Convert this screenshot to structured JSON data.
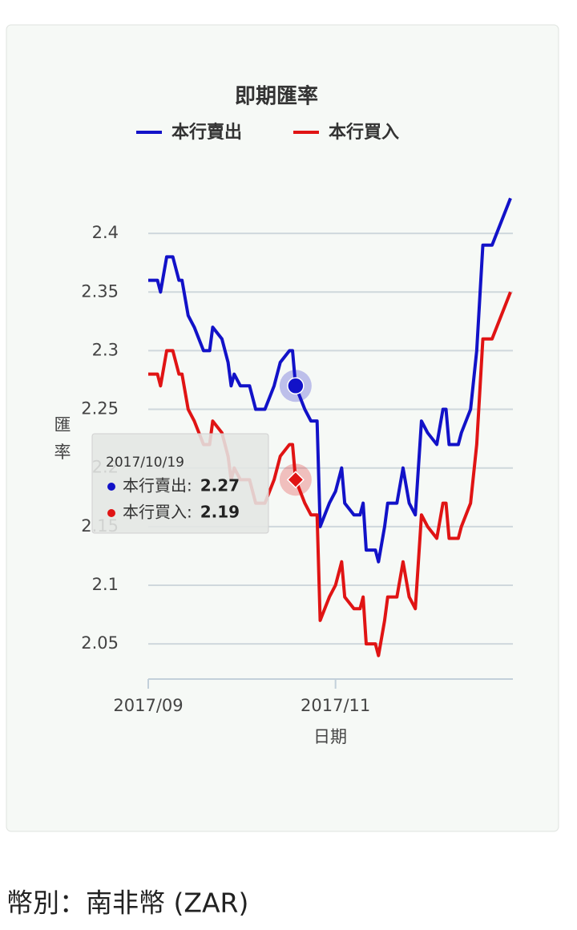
{
  "chart_data": {
    "type": "line",
    "title": "即期匯率",
    "x_label": "日期",
    "y_label": "匯率",
    "x": [
      "2017/09/01",
      "2017/09/04",
      "2017/09/05",
      "2017/09/07",
      "2017/09/09",
      "2017/09/11",
      "2017/09/12",
      "2017/09/14",
      "2017/09/16",
      "2017/09/19",
      "2017/09/21",
      "2017/09/22",
      "2017/09/25",
      "2017/09/27",
      "2017/09/28",
      "2017/09/29",
      "2017/10/01",
      "2017/10/04",
      "2017/10/06",
      "2017/10/09",
      "2017/10/12",
      "2017/10/14",
      "2017/10/17",
      "2017/10/18",
      "2017/10/19",
      "2017/10/22",
      "2017/10/24",
      "2017/10/26",
      "2017/10/27",
      "2017/10/30",
      "2017/11/01",
      "2017/11/03",
      "2017/11/04",
      "2017/11/07",
      "2017/11/09",
      "2017/11/10",
      "2017/11/11",
      "2017/11/14",
      "2017/11/15",
      "2017/11/17",
      "2017/11/18",
      "2017/11/21",
      "2017/11/23",
      "2017/11/25",
      "2017/11/27",
      "2017/11/29",
      "2017/12/01",
      "2017/12/04",
      "2017/12/06",
      "2017/12/07",
      "2017/12/08",
      "2017/12/11",
      "2017/12/12",
      "2017/12/15",
      "2017/12/17",
      "2017/12/19",
      "2017/12/22",
      "2017/12/25",
      "2017/12/28"
    ],
    "series": [
      {
        "name": "本行賣出",
        "color": "#1212c8",
        "marker": "circle",
        "values": [
          2.36,
          2.36,
          2.35,
          2.38,
          2.38,
          2.36,
          2.36,
          2.33,
          2.32,
          2.3,
          2.3,
          2.32,
          2.31,
          2.29,
          2.27,
          2.28,
          2.27,
          2.27,
          2.25,
          2.25,
          2.27,
          2.29,
          2.3,
          2.3,
          2.27,
          2.25,
          2.24,
          2.24,
          2.15,
          2.17,
          2.18,
          2.2,
          2.17,
          2.16,
          2.16,
          2.17,
          2.13,
          2.13,
          2.12,
          2.15,
          2.17,
          2.17,
          2.2,
          2.17,
          2.16,
          2.24,
          2.23,
          2.22,
          2.25,
          2.25,
          2.22,
          2.22,
          2.23,
          2.25,
          2.3,
          2.39,
          2.39,
          2.41,
          2.43
        ]
      },
      {
        "name": "本行買入",
        "color": "#e01414",
        "marker": "diamond",
        "values": [
          2.28,
          2.28,
          2.27,
          2.3,
          2.3,
          2.28,
          2.28,
          2.25,
          2.24,
          2.22,
          2.22,
          2.24,
          2.23,
          2.21,
          2.19,
          2.2,
          2.19,
          2.19,
          2.17,
          2.17,
          2.19,
          2.21,
          2.22,
          2.22,
          2.19,
          2.17,
          2.16,
          2.16,
          2.07,
          2.09,
          2.1,
          2.12,
          2.09,
          2.08,
          2.08,
          2.09,
          2.05,
          2.05,
          2.04,
          2.07,
          2.09,
          2.09,
          2.12,
          2.09,
          2.08,
          2.16,
          2.15,
          2.14,
          2.17,
          2.17,
          2.14,
          2.14,
          2.15,
          2.17,
          2.22,
          2.31,
          2.31,
          2.33,
          2.35
        ]
      }
    ],
    "xlim": [
      "2017/09/01",
      "2017/12/28"
    ],
    "xticks": [
      {
        "value": "2017/09/01",
        "label": "2017/09"
      },
      {
        "value": "2017/11/01",
        "label": "2017/11"
      }
    ],
    "ylim": [
      2.02,
      2.45
    ],
    "yticks": [
      2.05,
      2.1,
      2.15,
      2.2,
      2.25,
      2.3,
      2.35,
      2.4
    ],
    "grid": true,
    "legend": "top",
    "tooltip": {
      "date": "2017/10/19",
      "items": [
        {
          "label": "本行賣出:",
          "value": 2.27,
          "color": "#1212c8"
        },
        {
          "label": "本行買入:",
          "value": 2.19,
          "color": "#e01414"
        }
      ]
    }
  },
  "footer": "幣別：南非幣 (ZAR)"
}
